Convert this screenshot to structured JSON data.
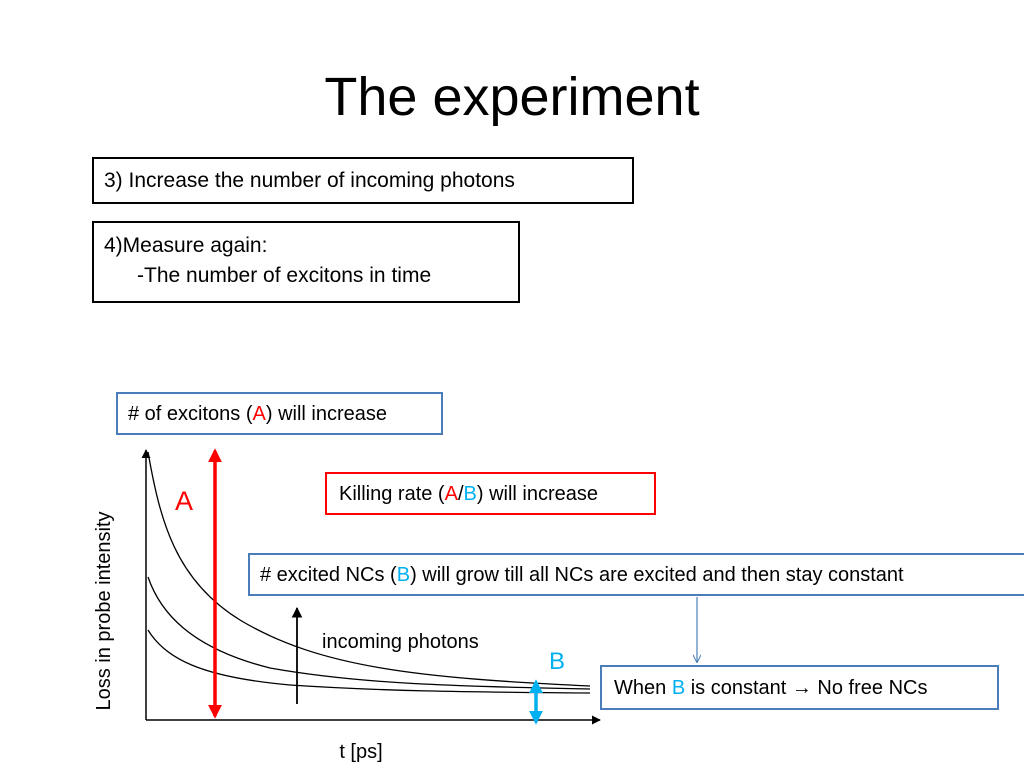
{
  "title": "The experiment",
  "steps": {
    "step3": "3) Increase the number of incoming photons",
    "step4_line1": "4)Measure again:",
    "step4_line2": "-The number of excitons in time"
  },
  "boxes": {
    "excitons": {
      "before": "# of excitons (",
      "highlight": "A",
      "after": ") will increase"
    },
    "killing": {
      "before": "Killing rate (",
      "a": "A",
      "slash": "/",
      "b": "B",
      "after": ") will increase"
    },
    "nc": {
      "before": "# excited NCs (",
      "highlight": "B",
      "after": ") will grow till all NCs are excited and then stay constant"
    },
    "constant": {
      "before": "When ",
      "highlight": "B",
      "after": " is constant ",
      "arrow": "→",
      "tail": " No free NCs"
    }
  },
  "graph": {
    "ylabel": "Loss in probe intensity",
    "xlabel": "t [ps]",
    "label_a": "A",
    "label_b": "B",
    "photons_label": "incoming photons"
  },
  "colors": {
    "red": "#ff0000",
    "cyan": "#00b0f0",
    "box_blue": "#4a7ebb"
  }
}
